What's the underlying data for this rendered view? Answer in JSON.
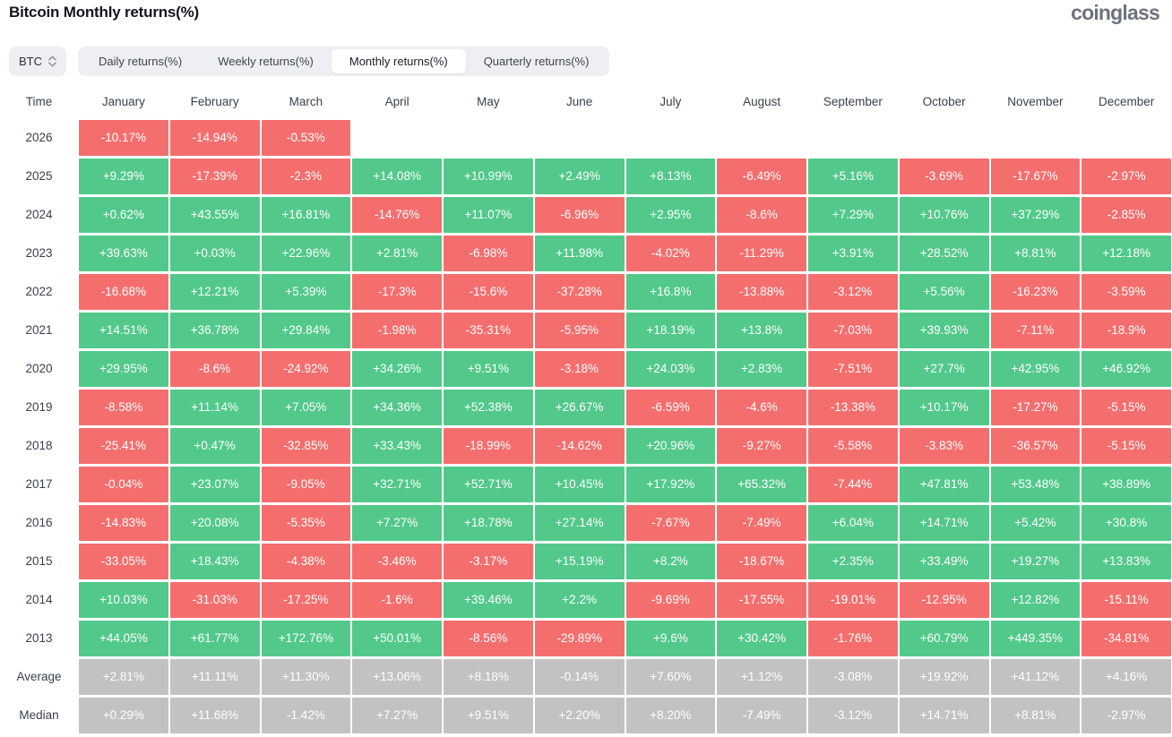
{
  "header": {
    "title": "Bitcoin Monthly returns(%)",
    "logo_text": "coinglass"
  },
  "controls": {
    "symbol_select": {
      "value": "BTC",
      "icon": "updown-caret-icon"
    },
    "tabs": [
      {
        "label": "Daily returns(%)",
        "active": false
      },
      {
        "label": "Weekly returns(%)",
        "active": false
      },
      {
        "label": "Monthly returns(%)",
        "active": true
      },
      {
        "label": "Quarterly returns(%)",
        "active": false
      }
    ]
  },
  "colors": {
    "positive": "#52c98a",
    "negative": "#f56e6e",
    "summary": "#c2c2c2",
    "control_bg": "#edeff2",
    "logo": "#6d737c"
  },
  "chart_data": {
    "type": "heatmap",
    "title": "Bitcoin Monthly returns(%)",
    "time_column_header": "Time",
    "columns": [
      "January",
      "February",
      "March",
      "April",
      "May",
      "June",
      "July",
      "August",
      "September",
      "October",
      "November",
      "December"
    ],
    "rows": [
      {
        "label": "2026",
        "type": "year",
        "values": [
          "-10.17%",
          "-14.94%",
          "-0.53%",
          "",
          "",
          "",
          "",
          "",
          "",
          "",
          "",
          ""
        ]
      },
      {
        "label": "2025",
        "type": "year",
        "values": [
          "+9.29%",
          "-17.39%",
          "-2.3%",
          "+14.08%",
          "+10.99%",
          "+2.49%",
          "+8.13%",
          "-6.49%",
          "+5.16%",
          "-3.69%",
          "-17.67%",
          "-2.97%"
        ]
      },
      {
        "label": "2024",
        "type": "year",
        "values": [
          "+0.62%",
          "+43.55%",
          "+16.81%",
          "-14.76%",
          "+11.07%",
          "-6.96%",
          "+2.95%",
          "-8.6%",
          "+7.29%",
          "+10.76%",
          "+37.29%",
          "-2.85%"
        ]
      },
      {
        "label": "2023",
        "type": "year",
        "values": [
          "+39.63%",
          "+0.03%",
          "+22.96%",
          "+2.81%",
          "-6.98%",
          "+11.98%",
          "-4.02%",
          "-11.29%",
          "+3.91%",
          "+28.52%",
          "+8.81%",
          "+12.18%"
        ]
      },
      {
        "label": "2022",
        "type": "year",
        "values": [
          "-16.68%",
          "+12.21%",
          "+5.39%",
          "-17.3%",
          "-15.6%",
          "-37.28%",
          "+16.8%",
          "-13.88%",
          "-3.12%",
          "+5.56%",
          "-16.23%",
          "-3.59%"
        ]
      },
      {
        "label": "2021",
        "type": "year",
        "values": [
          "+14.51%",
          "+36.78%",
          "+29.84%",
          "-1.98%",
          "-35.31%",
          "-5.95%",
          "+18.19%",
          "+13.8%",
          "-7.03%",
          "+39.93%",
          "-7.11%",
          "-18.9%"
        ]
      },
      {
        "label": "2020",
        "type": "year",
        "values": [
          "+29.95%",
          "-8.6%",
          "-24.92%",
          "+34.26%",
          "+9.51%",
          "-3.18%",
          "+24.03%",
          "+2.83%",
          "-7.51%",
          "+27.7%",
          "+42.95%",
          "+46.92%"
        ]
      },
      {
        "label": "2019",
        "type": "year",
        "values": [
          "-8.58%",
          "+11.14%",
          "+7.05%",
          "+34.36%",
          "+52.38%",
          "+26.67%",
          "-6.59%",
          "-4.6%",
          "-13.38%",
          "+10.17%",
          "-17.27%",
          "-5.15%"
        ]
      },
      {
        "label": "2018",
        "type": "year",
        "values": [
          "-25.41%",
          "+0.47%",
          "-32.85%",
          "+33.43%",
          "-18.99%",
          "-14.62%",
          "+20.96%",
          "-9.27%",
          "-5.58%",
          "-3.83%",
          "-36.57%",
          "-5.15%"
        ]
      },
      {
        "label": "2017",
        "type": "year",
        "values": [
          "-0.04%",
          "+23.07%",
          "-9.05%",
          "+32.71%",
          "+52.71%",
          "+10.45%",
          "+17.92%",
          "+65.32%",
          "-7.44%",
          "+47.81%",
          "+53.48%",
          "+38.89%"
        ]
      },
      {
        "label": "2016",
        "type": "year",
        "values": [
          "-14.83%",
          "+20.08%",
          "-5.35%",
          "+7.27%",
          "+18.78%",
          "+27.14%",
          "-7.67%",
          "-7.49%",
          "+6.04%",
          "+14.71%",
          "+5.42%",
          "+30.8%"
        ]
      },
      {
        "label": "2015",
        "type": "year",
        "values": [
          "-33.05%",
          "+18.43%",
          "-4.38%",
          "-3.46%",
          "-3.17%",
          "+15.19%",
          "+8.2%",
          "-18.67%",
          "+2.35%",
          "+33.49%",
          "+19.27%",
          "+13.83%"
        ]
      },
      {
        "label": "2014",
        "type": "year",
        "values": [
          "+10.03%",
          "-31.03%",
          "-17.25%",
          "-1.6%",
          "+39.46%",
          "+2.2%",
          "-9.69%",
          "-17.55%",
          "-19.01%",
          "-12.95%",
          "+12.82%",
          "-15.11%"
        ]
      },
      {
        "label": "2013",
        "type": "year",
        "values": [
          "+44.05%",
          "+61.77%",
          "+172.76%",
          "+50.01%",
          "-8.56%",
          "-29.89%",
          "+9.6%",
          "+30.42%",
          "-1.76%",
          "+60.79%",
          "+449.35%",
          "-34.81%"
        ]
      },
      {
        "label": "Average",
        "type": "summary",
        "values": [
          "+2.81%",
          "+11.11%",
          "+11.30%",
          "+13.06%",
          "+8.18%",
          "-0.14%",
          "+7.60%",
          "+1.12%",
          "-3.08%",
          "+19.92%",
          "+41.12%",
          "+4.16%"
        ]
      },
      {
        "label": "Median",
        "type": "summary",
        "values": [
          "+0.29%",
          "+11.68%",
          "-1.42%",
          "+7.27%",
          "+9.51%",
          "+2.20%",
          "+8.20%",
          "-7.49%",
          "-3.12%",
          "+14.71%",
          "+8.81%",
          "-2.97%"
        ]
      }
    ]
  }
}
